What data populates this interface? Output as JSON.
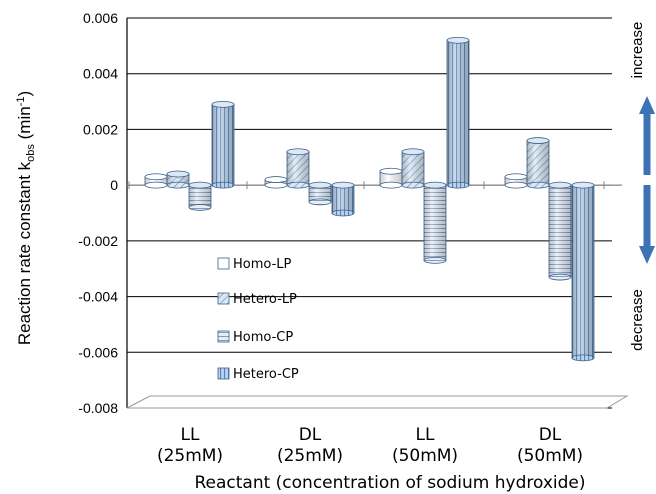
{
  "chart_data": {
    "type": "bar",
    "title": "",
    "categories": [
      {
        "line1": "LL",
        "line2": "(25mM)"
      },
      {
        "line1": "DL",
        "line2": "(25mM)"
      },
      {
        "line1": "LL",
        "line2": "(50mM)"
      },
      {
        "line1": "DL",
        "line2": "(50mM)"
      }
    ],
    "series": [
      {
        "name": "Homo-LP",
        "values": [
          0.0003,
          0.0002,
          0.0005,
          0.0003
        ]
      },
      {
        "name": "Hetero-LP",
        "values": [
          0.0004,
          0.0012,
          0.0012,
          0.0016
        ]
      },
      {
        "name": "Homo-CP",
        "values": [
          -0.0008,
          -0.0006,
          -0.0027,
          -0.0033
        ]
      },
      {
        "name": "Hetero-CP",
        "values": [
          0.0029,
          -0.001,
          0.0052,
          -0.0062
        ]
      }
    ],
    "xlabel": "Reactant (concentration of sodium hydroxide)",
    "ylabel": {
      "main": "Reaction rate constant k",
      "sub": "obs",
      "unit_open": " (min",
      "sup": "-1",
      "unit_close": ")"
    },
    "ylim": [
      -0.008,
      0.006
    ],
    "yticks": [
      "0.006",
      "0.004",
      "0.002",
      "0",
      "-0.002",
      "-0.004",
      "-0.006",
      "-0.008"
    ],
    "grid": true,
    "legend_position": "left-inside",
    "annotations": {
      "top": "increase",
      "bottom": "decrease"
    }
  },
  "colors": {
    "series_fill": [
      "#ffffff",
      "#bfd6ec",
      "#d9e4f1",
      "#a9c5e6"
    ],
    "series_stroke": "#3c5f8a",
    "arrow": "#3b73b5",
    "grid": "#000000"
  }
}
